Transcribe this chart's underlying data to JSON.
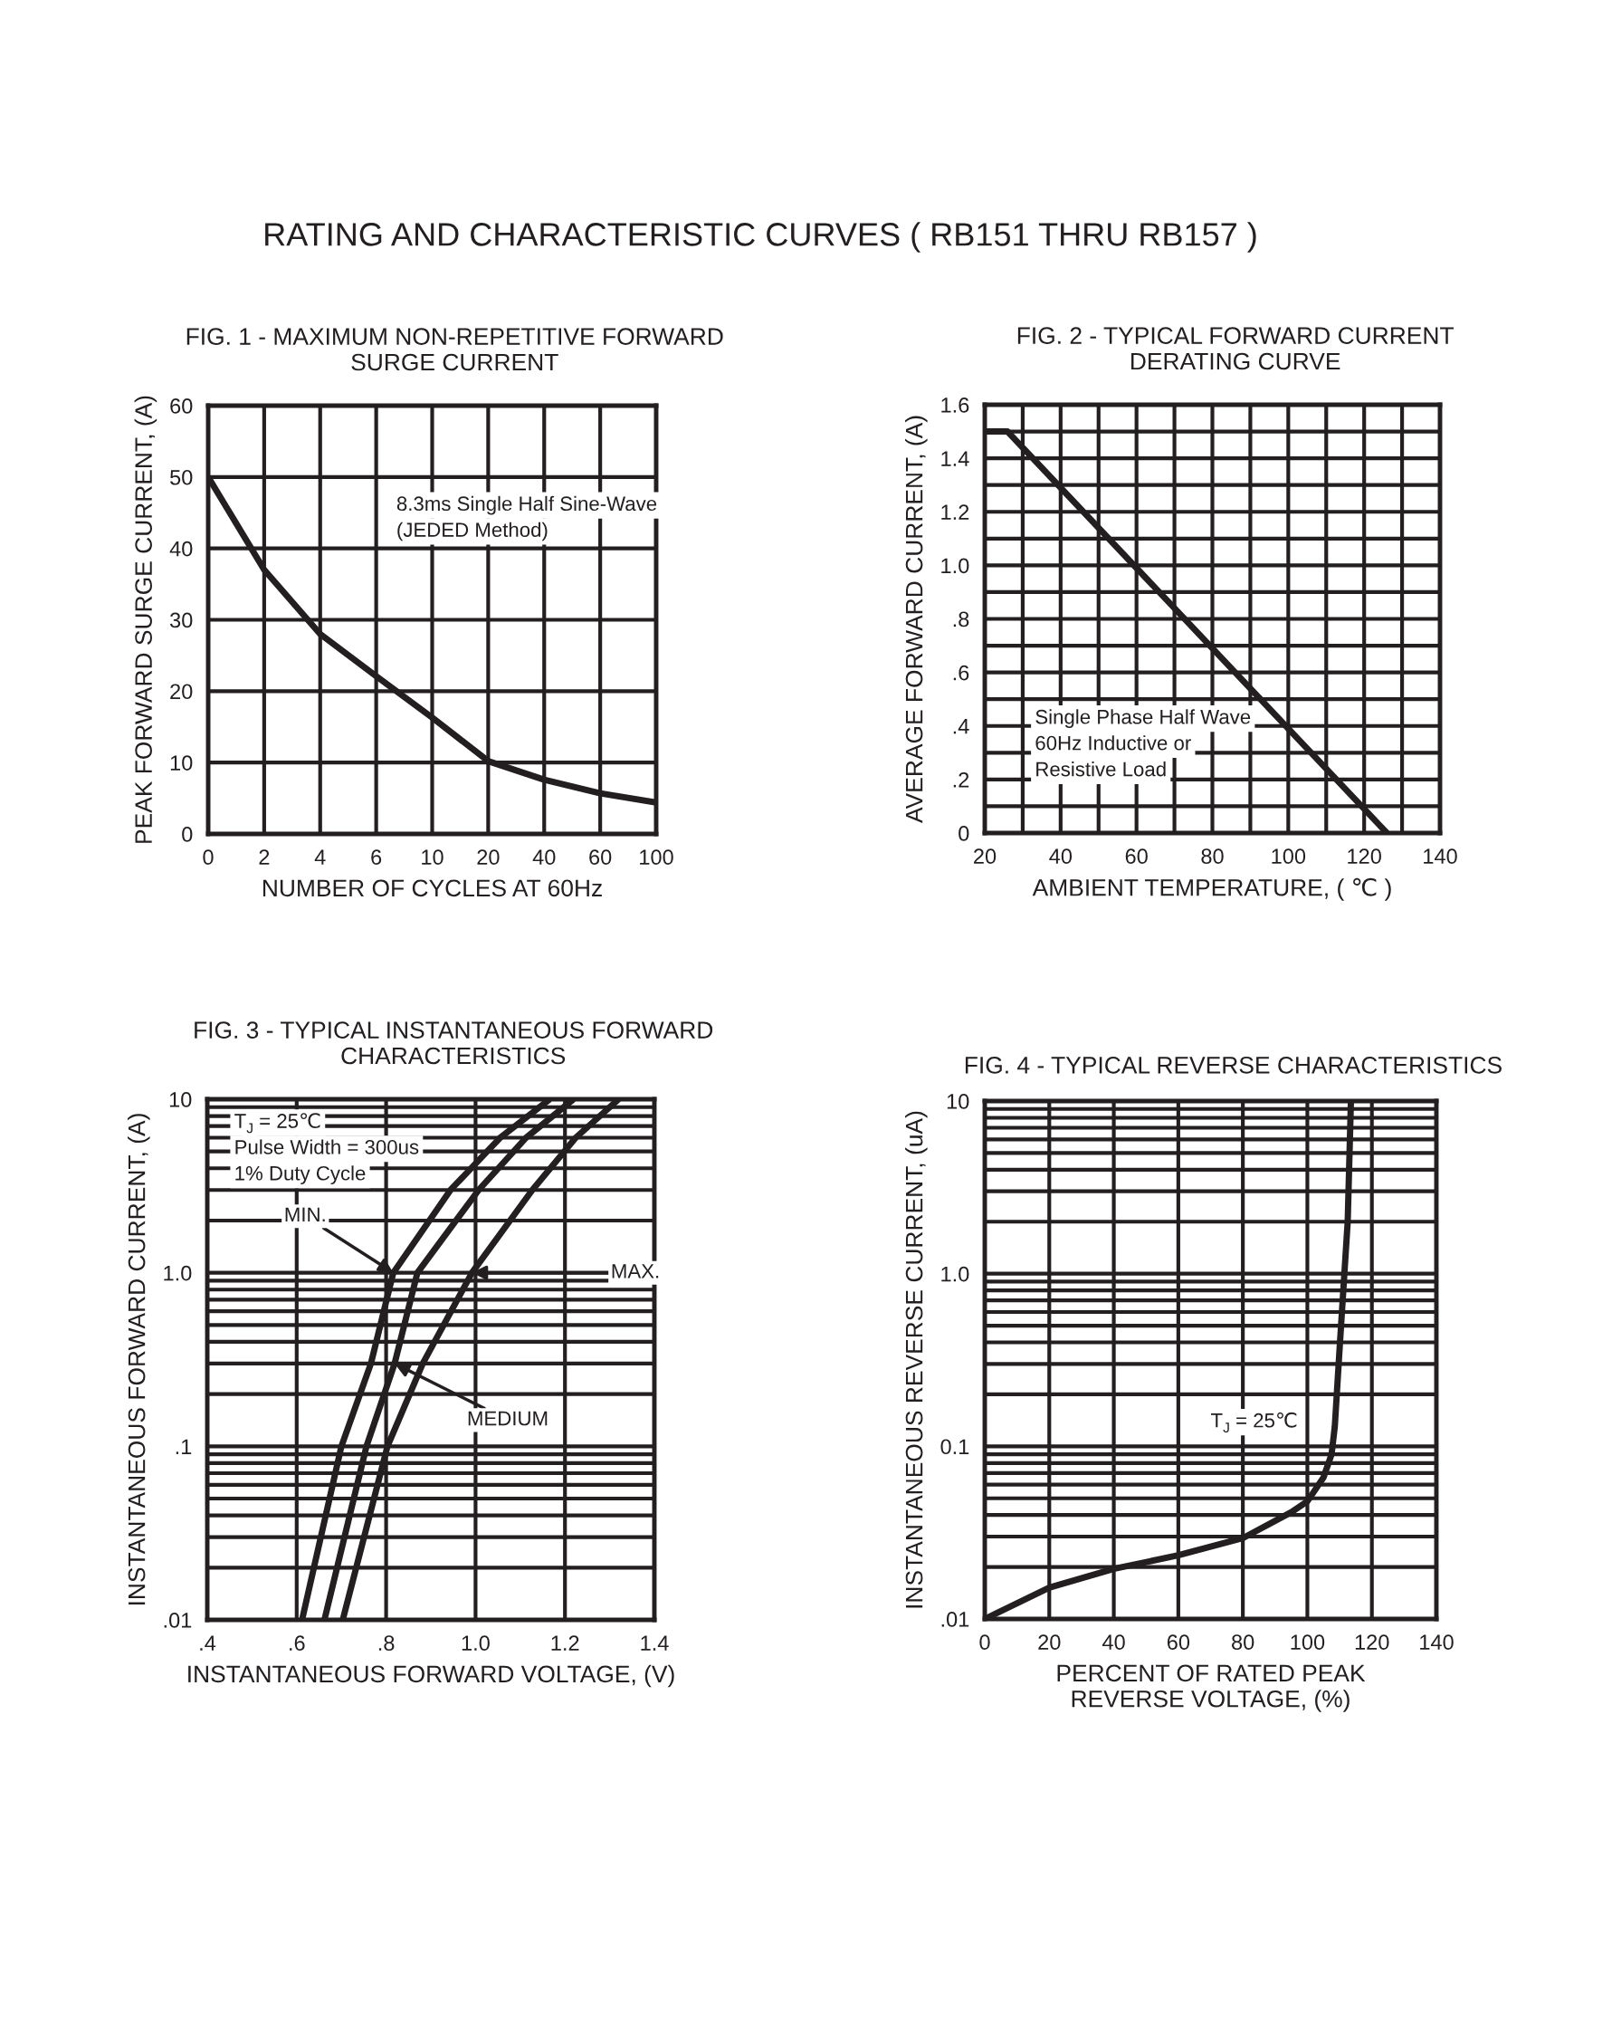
{
  "chart_data": [
    {
      "type": "line",
      "title": "FIG. 1 - MAXIMUM NON-REPETITIVE FORWARD\nSURGE CURRENT",
      "xlabel": "NUMBER OF CYCLES AT 60Hz",
      "ylabel": "PEAK FORWARD SURGE CURRENT, (A)",
      "categories": [
        "0",
        "2",
        "4",
        "6",
        "10",
        "20",
        "40",
        "60",
        "100"
      ],
      "series": [
        {
          "color": "#231f20",
          "values": [
            50,
            37,
            28,
            22.1,
            16.3,
            10.2,
            7.6,
            5.7,
            4.4
          ]
        }
      ],
      "ylim": [
        0,
        60
      ],
      "yticks": [
        0,
        10,
        20,
        30,
        40,
        50,
        60
      ],
      "grid": true,
      "line_style": "solid",
      "annotations": [
        "RATING AND CHARACTERISTIC CURVES ( RB151 THRU RB157 )",
        "8.3ms Single Half Sine-Wave\n(JEDED Method)"
      ]
    },
    {
      "type": "line",
      "title": "FIG. 2 - TYPICAL FORWARD CURRENT\nDERATING CURVE",
      "xlabel": "AMBIENT TEMPERATURE, ( ℃ )",
      "ylabel": "AVERAGE FORWARD CURRENT, (A)",
      "x": [
        20,
        26,
        126
      ],
      "series": [
        {
          "color": "#231f20",
          "values": [
            1.5,
            1.5,
            0
          ]
        }
      ],
      "xlim": [
        20,
        140
      ],
      "xticks": [
        20,
        {
          "value": 30,
          "label": null
        },
        40,
        {
          "value": 50,
          "label": null
        },
        60,
        {
          "value": 70,
          "label": null
        },
        80,
        {
          "value": 90,
          "label": null
        },
        100,
        {
          "value": 110,
          "label": null
        },
        120,
        {
          "value": 130,
          "label": null
        },
        140
      ],
      "ylim": [
        0,
        1.6
      ],
      "yticks": [
        {
          "value": 0,
          "label": "0"
        },
        {
          "value": 0.1,
          "label": null
        },
        {
          "value": 0.2,
          "label": ".2"
        },
        {
          "value": 0.3,
          "label": null
        },
        {
          "value": 0.4,
          "label": ".4"
        },
        {
          "value": 0.5,
          "label": null
        },
        {
          "value": 0.6,
          "label": ".6"
        },
        {
          "value": 0.7,
          "label": null
        },
        {
          "value": 0.8,
          "label": ".8"
        },
        {
          "value": 0.9,
          "label": null
        },
        {
          "value": 1.0,
          "label": "1.0"
        },
        {
          "value": 1.1,
          "label": null
        },
        {
          "value": 1.2,
          "label": "1.2"
        },
        {
          "value": 1.3,
          "label": null
        },
        {
          "value": 1.4,
          "label": "1.4"
        },
        {
          "value": 1.5,
          "label": null
        },
        {
          "value": 1.6,
          "label": "1.6"
        }
      ],
      "grid": true,
      "line_style": "solid",
      "annotations": [
        "Single Phase Half Wave\n60Hz Inductive or\nResistive Load"
      ]
    },
    {
      "type": "line",
      "title": "FIG. 3 - TYPICAL INSTANTANEOUS FORWARD\nCHARACTERISTICS",
      "xlabel": "INSTANTANEOUS FORWARD VOLTAGE, (V)",
      "ylabel": "INSTANTANEOUS FORWARD CURRENT, (A)",
      "series": [
        {
          "color": "#231f20",
          "x": [
            0.612,
            0.7,
            0.766,
            0.816,
            0.944,
            1.055,
            1.166
          ],
          "values": [
            0.01,
            0.1,
            0.3,
            1,
            3,
            6,
            10
          ]
        },
        {
          "color": "#231f20",
          "x": [
            0.662,
            0.756,
            0.819,
            0.87,
            1.007,
            1.113,
            1.219
          ],
          "values": [
            0.01,
            0.1,
            0.3,
            1,
            3,
            6,
            10
          ]
        },
        {
          "color": "#231f20",
          "x": [
            0.703,
            0.803,
            0.882,
            0.992,
            1.127,
            1.224,
            1.32
          ],
          "values": [
            0.01,
            0.1,
            0.3,
            1,
            3,
            6,
            10
          ]
        }
      ],
      "xlim": [
        0.4,
        1.4
      ],
      "xticks": [
        {
          "value": 0.4,
          "label": ".4"
        },
        {
          "value": 0.6,
          "label": ".6"
        },
        {
          "value": 0.8,
          "label": ".8"
        },
        {
          "value": 1.0,
          "label": "1.0"
        },
        {
          "value": 1.2,
          "label": "1.2"
        },
        {
          "value": 1.4,
          "label": "1.4"
        }
      ],
      "log": "y",
      "ylim": [
        0.01,
        10
      ],
      "yticks": [
        {
          "value": 0.01,
          "label": ".01"
        },
        {
          "value": 0.02,
          "label": null
        },
        {
          "value": 0.03,
          "label": null
        },
        {
          "value": 0.04,
          "label": null
        },
        {
          "value": 0.05,
          "label": null
        },
        {
          "value": 0.06,
          "label": null
        },
        {
          "value": 0.07,
          "label": null
        },
        {
          "value": 0.08,
          "label": null
        },
        {
          "value": 0.09,
          "label": null
        },
        {
          "value": 0.1,
          "label": ".1"
        },
        {
          "value": 0.2,
          "label": null
        },
        {
          "value": 0.3,
          "label": null
        },
        {
          "value": 0.4,
          "label": null
        },
        {
          "value": 0.5,
          "label": null
        },
        {
          "value": 0.6,
          "label": null
        },
        {
          "value": 0.7,
          "label": null
        },
        {
          "value": 0.8,
          "label": null
        },
        {
          "value": 0.9,
          "label": null
        },
        {
          "value": 1,
          "label": "1.0"
        },
        {
          "value": 2,
          "label": null
        },
        {
          "value": 3,
          "label": null
        },
        {
          "value": 4,
          "label": null
        },
        {
          "value": 5,
          "label": null
        },
        {
          "value": 6,
          "label": null
        },
        {
          "value": 7,
          "label": null
        },
        {
          "value": 8,
          "label": null
        },
        {
          "value": 9,
          "label": null
        },
        {
          "value": 10,
          "label": "10"
        }
      ],
      "grid": true,
      "line_style": "solid",
      "annotations": [
        "T$_{J}$ = 25℃\nPulse Width = 300us\n1% Duty Cycle",
        {
          "text": "MIN.",
          "x": 0.816,
          "y": 1
        },
        {
          "text": "MAX.",
          "x": 0.992,
          "y": 1
        },
        {
          "text": "MEDIUM",
          "x": 0.819,
          "y": 0.3
        }
      ]
    },
    {
      "type": "line",
      "title": "FIG. 4 - TYPICAL REVERSE CHARACTERISTICS",
      "xlabel": "PERCENT OF RATED PEAK\nREVERSE VOLTAGE, (%)",
      "ylabel": "INSTANTANEOUS REVERSE CURRENT, (uA)",
      "x": [
        0,
        20,
        40,
        60,
        80,
        95,
        100,
        105,
        107.5,
        108.5,
        110,
        112.5,
        113.5
      ],
      "series": [
        {
          "color": "#231f20",
          "values": [
            0.01,
            0.0152,
            0.0195,
            0.0234,
            0.0294,
            0.0415,
            0.048,
            0.066,
            0.09,
            0.13,
            0.37,
            2.0,
            10
          ]
        }
      ],
      "xlim": [
        0,
        140
      ],
      "xticks": [
        0,
        20,
        40,
        60,
        80,
        100,
        120,
        140
      ],
      "log": "y",
      "ylim": [
        0.01,
        10
      ],
      "yticks": [
        {
          "value": 0.01,
          "label": ".01"
        },
        {
          "value": 0.02,
          "label": null
        },
        {
          "value": 0.03,
          "label": null
        },
        {
          "value": 0.04,
          "label": null
        },
        {
          "value": 0.05,
          "label": null
        },
        {
          "value": 0.06,
          "label": null
        },
        {
          "value": 0.07,
          "label": null
        },
        {
          "value": 0.08,
          "label": null
        },
        {
          "value": 0.09,
          "label": null
        },
        {
          "value": 0.1,
          "label": "0.1"
        },
        {
          "value": 0.2,
          "label": null
        },
        {
          "value": 0.3,
          "label": null
        },
        {
          "value": 0.4,
          "label": null
        },
        {
          "value": 0.5,
          "label": null
        },
        {
          "value": 0.6,
          "label": null
        },
        {
          "value": 0.7,
          "label": null
        },
        {
          "value": 0.8,
          "label": null
        },
        {
          "value": 0.9,
          "label": null
        },
        {
          "value": 1,
          "label": "1.0"
        },
        {
          "value": 2,
          "label": null
        },
        {
          "value": 3,
          "label": null
        },
        {
          "value": 4,
          "label": null
        },
        {
          "value": 5,
          "label": null
        },
        {
          "value": 6,
          "label": null
        },
        {
          "value": 7,
          "label": null
        },
        {
          "value": 8,
          "label": null
        },
        {
          "value": 9,
          "label": null
        },
        {
          "value": 10,
          "label": "10"
        }
      ],
      "grid": true,
      "line_style": "solid",
      "annotations": [
        "T$_{J}$ = 25℃"
      ]
    }
  ]
}
